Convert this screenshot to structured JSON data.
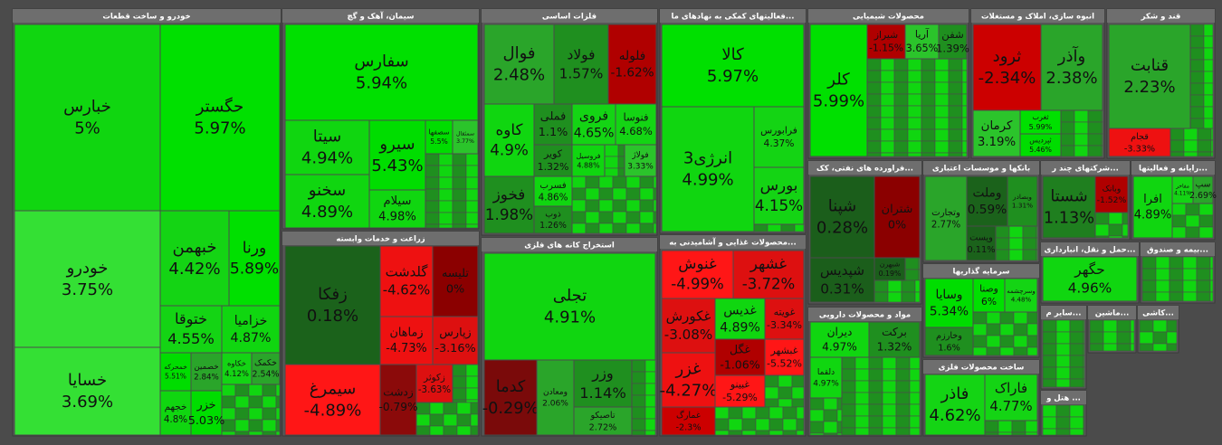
{
  "sectors": [
    {
      "title": "خودرو و ساخت قطعات",
      "tiles": [
        {
          "name": "خبارس",
          "change": "5%",
          "color": "#10d610"
        },
        {
          "name": "حگستر",
          "change": "5.97%",
          "color": "#00e000"
        },
        {
          "name": "خودرو",
          "change": "3.75%",
          "color": "#34e034"
        },
        {
          "name": "خسایا",
          "change": "3.69%",
          "color": "#34e034"
        },
        {
          "name": "خبهمن",
          "change": "4.42%",
          "color": "#14d414"
        },
        {
          "name": "ورنا",
          "change": "5.89%",
          "color": "#00e000"
        },
        {
          "name": "ختوقا",
          "change": "4.55%",
          "color": "#14d414"
        },
        {
          "name": "خزامیا",
          "change": "4.87%",
          "color": "#10d610"
        },
        {
          "name": "خمحرکه",
          "change": "5.51%",
          "color": "#00dd00"
        },
        {
          "name": "خصمین",
          "change": "2.84%",
          "color": "#2aa52a"
        },
        {
          "name": "خکاوه",
          "change": "4.12%",
          "color": "#14d414"
        },
        {
          "name": "خکمک",
          "change": "2.54%",
          "color": "#2aa52a"
        },
        {
          "name": "خجهم",
          "change": "4.8%",
          "color": "#10d610"
        },
        {
          "name": "خزر",
          "change": "5.03%",
          "color": "#00dd00"
        }
      ]
    },
    {
      "title": "سیمان، آهک و گچ",
      "tiles": [
        {
          "name": "سفارس",
          "change": "5.94%",
          "color": "#00e000"
        },
        {
          "name": "سیتا",
          "change": "4.94%",
          "color": "#10d610"
        },
        {
          "name": "سخنو",
          "change": "4.89%",
          "color": "#10d610"
        },
        {
          "name": "سیرو",
          "change": "5.43%",
          "color": "#00dd00"
        },
        {
          "name": "سیلام",
          "change": "4.98%",
          "color": "#10d610"
        },
        {
          "name": "سصفها",
          "change": "5.5%",
          "color": "#00dd00"
        },
        {
          "name": "سمثقال",
          "change": "3.77%",
          "color": "#2bc42b"
        }
      ]
    },
    {
      "title": "زراعت و خدمات وابسته",
      "tiles": [
        {
          "name": "زفکا",
          "change": "0.18%",
          "color": "#1b621b"
        },
        {
          "name": "گلدشت",
          "change": "-4.62%",
          "color": "#ee1111"
        },
        {
          "name": "تلیسه",
          "change": "0%",
          "color": "#8b0000"
        },
        {
          "name": "زماهان",
          "change": "-4.73%",
          "color": "#ee1111"
        },
        {
          "name": "زپارس",
          "change": "-3.16%",
          "color": "#dd1010"
        },
        {
          "name": "سیمرغ",
          "change": "-4.89%",
          "color": "#ff1616"
        },
        {
          "name": "زدشت",
          "change": "-0.79%",
          "color": "#8b0a0a"
        },
        {
          "name": "زکوثر",
          "change": "-3.63%",
          "color": "#dd1010"
        }
      ]
    },
    {
      "title": "فلزات اساسی",
      "tiles": [
        {
          "name": "فوال",
          "change": "2.48%",
          "color": "#2aa52a"
        },
        {
          "name": "فولاد",
          "change": "1.57%",
          "color": "#1f8f1f"
        },
        {
          "name": "فلوله",
          "change": "-1.62%",
          "color": "#b00000"
        },
        {
          "name": "کاوه",
          "change": "4.9%",
          "color": "#10d610"
        },
        {
          "name": "فخوز",
          "change": "1.98%",
          "color": "#1f8f1f"
        },
        {
          "name": "فملی",
          "change": "1.1%",
          "color": "#1f8f1f"
        },
        {
          "name": "فروی",
          "change": "4.65%",
          "color": "#14d414"
        },
        {
          "name": "فنوسا",
          "change": "4.68%",
          "color": "#14d414"
        },
        {
          "name": "کویر",
          "change": "1.32%",
          "color": "#1f8f1f"
        },
        {
          "name": "فروسیل",
          "change": "4.88%",
          "color": "#10d610"
        },
        {
          "name": "فولاژ",
          "change": "3.33%",
          "color": "#2bc42b"
        },
        {
          "name": "فسرب",
          "change": "4.86%",
          "color": "#10d610"
        },
        {
          "name": "ذوب",
          "change": "1.26%",
          "color": "#1f8f1f"
        }
      ]
    },
    {
      "title": "فعالیتهای کمکی به نهادهای ما...",
      "tiles": [
        {
          "name": "کالا",
          "change": "5.97%",
          "color": "#00e000"
        },
        {
          "name": "انرژی3",
          "change": "4.99%",
          "color": "#10d610"
        },
        {
          "name": "فرابورس",
          "change": "4.37%",
          "color": "#14d414"
        },
        {
          "name": "بورس",
          "change": "4.15%",
          "color": "#14d414"
        }
      ]
    },
    {
      "title": "استخراج کانه های فلزی",
      "tiles": [
        {
          "name": "تجلی",
          "change": "4.91%",
          "color": "#10d610"
        },
        {
          "name": "کدما",
          "change": "-0.29%",
          "color": "#7a0a0a"
        },
        {
          "name": "ومعادن",
          "change": "2.06%",
          "color": "#2aa52a"
        },
        {
          "name": "وزر",
          "change": "1.14%",
          "color": "#1f8f1f"
        },
        {
          "name": "تاصیکو",
          "change": "2.72%",
          "color": "#2aa52a"
        }
      ]
    },
    {
      "title": "محصولات غذایی و آشامیدنی به...",
      "tiles": [
        {
          "name": "غنوش",
          "change": "-4.99%",
          "color": "#ff1616"
        },
        {
          "name": "غشهر",
          "change": "-3.72%",
          "color": "#dd1010"
        },
        {
          "name": "غکورش",
          "change": "-3.08%",
          "color": "#dd1010"
        },
        {
          "name": "غدیس",
          "change": "4.89%",
          "color": "#10d610"
        },
        {
          "name": "غویته",
          "change": "-3.34%",
          "color": "#dd1010"
        },
        {
          "name": "غگل",
          "change": "-1.06%",
          "color": "#b00000"
        },
        {
          "name": "غبشهر",
          "change": "-5.52%",
          "color": "#ff1616"
        },
        {
          "name": "غزر",
          "change": "-4.27%",
          "color": "#ee1111"
        },
        {
          "name": "غبینو",
          "change": "-5.29%",
          "color": "#ff1616"
        },
        {
          "name": "غمارگ",
          "change": "-2.3%",
          "color": "#cc0000"
        }
      ]
    },
    {
      "title": "محصولات شیمیایی",
      "tiles": [
        {
          "name": "کلر",
          "change": "5.99%",
          "color": "#00e000"
        },
        {
          "name": "شیراز",
          "change": "-1.15%",
          "color": "#b00000"
        },
        {
          "name": "آریا",
          "change": "3.65%",
          "color": "#2bc42b"
        },
        {
          "name": "شفن",
          "change": "1.39%",
          "color": "#1f8f1f"
        }
      ]
    },
    {
      "title": "انبوه سازی، املاک و مستغلات",
      "tiles": [
        {
          "name": "ثرود",
          "change": "-2.34%",
          "color": "#cc0000"
        },
        {
          "name": "وآذر",
          "change": "2.38%",
          "color": "#2aa52a"
        },
        {
          "name": "کرمان",
          "change": "3.19%",
          "color": "#2bc42b"
        },
        {
          "name": "ثغرب",
          "change": "5.99%",
          "color": "#00e000"
        },
        {
          "name": "ثپردیس",
          "change": "5.46%",
          "color": "#00dd00"
        }
      ]
    },
    {
      "title": "قند و شکر",
      "tiles": [
        {
          "name": "قنابت",
          "change": "2.23%",
          "color": "#2aa52a"
        },
        {
          "name": "قجام",
          "change": "-3.33%",
          "color": "#ee1111"
        }
      ]
    },
    {
      "title": "فراورده های نفتی، کک...",
      "tiles": [
        {
          "name": "شپنا",
          "change": "0.28%",
          "color": "#1b5e1b"
        },
        {
          "name": "شتران",
          "change": "0%",
          "color": "#8b0000"
        },
        {
          "name": "شپدیس",
          "change": "0.31%",
          "color": "#1b5e1b"
        },
        {
          "name": "شبهرن",
          "change": "0.19%",
          "color": "#1b5e1b"
        }
      ]
    },
    {
      "title": "بانکها و موسسات اعتباری",
      "tiles": [
        {
          "name": "وتجارت",
          "change": "2.77%",
          "color": "#2aa52a"
        },
        {
          "name": "وملت",
          "change": "0.59%",
          "color": "#1b621b"
        },
        {
          "name": "وبصادر",
          "change": "1.31%",
          "color": "#1f8f1f"
        },
        {
          "name": "وپست",
          "change": "0.11%",
          "color": "#1b621b"
        }
      ]
    },
    {
      "title": "شرکتهای چند ر...",
      "tiles": [
        {
          "name": "شستا",
          "change": "1.13%",
          "color": "#1f7f1f"
        },
        {
          "name": "وبانک",
          "change": "-1.52%",
          "color": "#b00000"
        }
      ]
    },
    {
      "title": "رایانه و فعالیتها...",
      "tiles": [
        {
          "name": "افرا",
          "change": "4.89%",
          "color": "#10d610"
        },
        {
          "name": "مفاخر",
          "change": "4.11%",
          "color": "#14d414"
        },
        {
          "name": "سپ",
          "change": "2.69%",
          "color": "#2aa52a"
        }
      ]
    },
    {
      "title": "سرمایه گذاریها",
      "tiles": [
        {
          "name": "وسایا",
          "change": "5.34%",
          "color": "#00dd00"
        },
        {
          "name": "وصنا",
          "change": "6%",
          "color": "#00e000"
        },
        {
          "name": "وسرچشمه",
          "change": "4.48%",
          "color": "#14d414"
        },
        {
          "name": "وخارزم",
          "change": "1.6%",
          "color": "#1f8f1f"
        }
      ]
    },
    {
      "title": "حمل و نقل، انبارداری...",
      "tiles": [
        {
          "name": "حگهر",
          "change": "4.96%",
          "color": "#10d610"
        }
      ]
    },
    {
      "title": "بیمه و صندوق...",
      "tiles": []
    },
    {
      "title": "مواد و محصولات دارویی",
      "tiles": [
        {
          "name": "دیران",
          "change": "4.97%",
          "color": "#10d610"
        },
        {
          "name": "برکت",
          "change": "1.32%",
          "color": "#1f8f1f"
        },
        {
          "name": "دلقما",
          "change": "4.97%",
          "color": "#10d610"
        }
      ]
    },
    {
      "title": "ساخت محصولات فلزی",
      "tiles": [
        {
          "name": "فاذر",
          "change": "4.62%",
          "color": "#14d414"
        },
        {
          "name": "فاراک",
          "change": "4.77%",
          "color": "#14d414"
        }
      ]
    },
    {
      "title": "سایر م...",
      "tiles": []
    },
    {
      "title": "ماشین...",
      "tiles": []
    },
    {
      "title": "کاشی...",
      "tiles": []
    },
    {
      "title": "هتل و ...",
      "tiles": []
    }
  ]
}
